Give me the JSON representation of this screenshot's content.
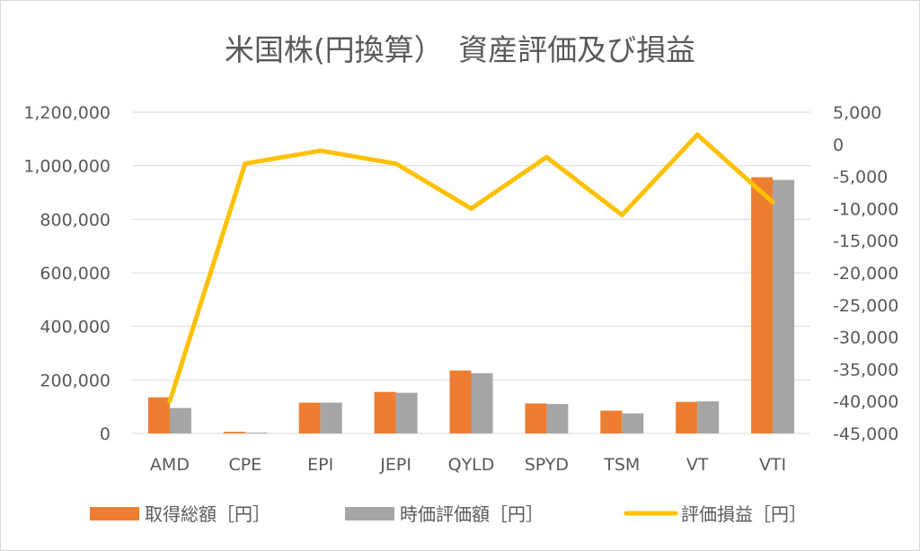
{
  "chart_data": {
    "type": "bar",
    "title": "米国株(円換算）　資産評価及び損益",
    "categories": [
      "AMD",
      "CPE",
      "EPI",
      "JEPI",
      "QYLD",
      "SPYD",
      "TSM",
      "VT",
      "VTI"
    ],
    "series": [
      {
        "name": "取得総額［円］",
        "type": "bar",
        "axis": "left",
        "color": "#ed7d31",
        "values": [
          135000,
          6000,
          115000,
          155000,
          235000,
          112000,
          85000,
          118000,
          957000
        ]
      },
      {
        "name": "時価評価額［円］",
        "type": "bar",
        "axis": "left",
        "color": "#a5a5a5",
        "values": [
          95000,
          3000,
          115000,
          152000,
          225000,
          110000,
          75000,
          120000,
          947000
        ]
      },
      {
        "name": "評価損益［円］",
        "type": "line",
        "axis": "right",
        "color": "#ffc000",
        "values": [
          -40000,
          -3000,
          -1000,
          -3000,
          -10000,
          -2000,
          -11000,
          1500,
          -9000
        ]
      }
    ],
    "y_left": {
      "ylim": [
        0,
        1200000
      ],
      "ticks": [
        0,
        200000,
        400000,
        600000,
        800000,
        1000000,
        1200000
      ],
      "tick_labels": [
        "0",
        "200,000",
        "400,000",
        "600,000",
        "800,000",
        "1,000,000",
        "1,200,000"
      ]
    },
    "y_right": {
      "ylim": [
        -45000,
        5000
      ],
      "ticks": [
        -45000,
        -40000,
        -35000,
        -30000,
        -25000,
        -20000,
        -15000,
        -10000,
        -5000,
        0,
        5000
      ],
      "tick_labels": [
        "-45,000",
        "-40,000",
        "-35,000",
        "-30,000",
        "-25,000",
        "-20,000",
        "-15,000",
        "-10,000",
        "-5,000",
        "0",
        "5,000"
      ]
    },
    "grid": true,
    "gridline_color": "#d9d9d9",
    "legend_position": "bottom"
  }
}
